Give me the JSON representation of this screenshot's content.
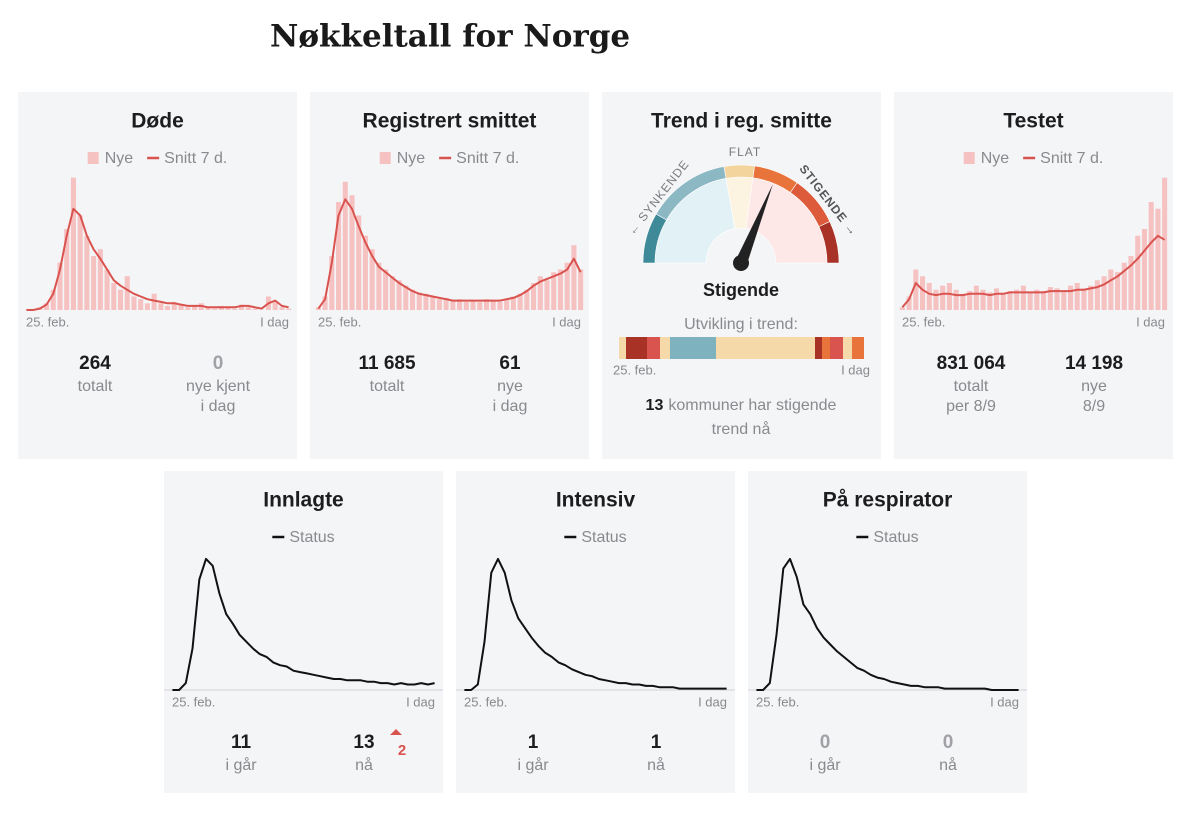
{
  "title": "Nøkkeltall for Norge",
  "cards": [
    {
      "title": "Døde",
      "chart_data": {
        "type": "combo",
        "ylim": [
          0,
          100
        ],
        "categories": [
          "25. feb.",
          null,
          null,
          null,
          null,
          null,
          null,
          null,
          null,
          null,
          null,
          null,
          null,
          null,
          null,
          null,
          null,
          null,
          null,
          null,
          null,
          null,
          null,
          null,
          null,
          null,
          null,
          null,
          null,
          null,
          null,
          null,
          null,
          null,
          null,
          null,
          null,
          null,
          null,
          "I dag"
        ],
        "series": [
          {
            "name": "Nye",
            "type": "bar",
            "color": "#f6c1c1",
            "values": [
              0,
              0,
              2,
              5,
              15,
              35,
              60,
              98,
              70,
              55,
              40,
              45,
              30,
              20,
              15,
              25,
              10,
              8,
              5,
              12,
              5,
              3,
              6,
              4,
              2,
              3,
              5,
              2,
              1,
              3,
              2,
              1,
              4,
              2,
              1,
              0,
              10,
              6,
              2,
              1
            ]
          },
          {
            "name": "Snitt 7 d.",
            "type": "line",
            "color": "#d9534f",
            "values": [
              0,
              0,
              1,
              4,
              12,
              30,
              55,
              75,
              70,
              55,
              45,
              38,
              30,
              22,
              18,
              15,
              12,
              10,
              8,
              7,
              6,
              5,
              5,
              4,
              3,
              3,
              3,
              2,
              2,
              2,
              2,
              2,
              3,
              3,
              2,
              1,
              5,
              7,
              3,
              2
            ]
          }
        ]
      },
      "stats": [
        {
          "value": "264",
          "label": [
            "totalt"
          ]
        },
        {
          "value": "0",
          "label": [
            "nye kjent",
            "i dag"
          ],
          "muted": true
        }
      ]
    },
    {
      "title": "Registrert smittet",
      "chart_data": {
        "type": "combo",
        "ylim": [
          0,
          100
        ],
        "categories": [
          "25. feb.",
          null,
          null,
          null,
          null,
          null,
          null,
          null,
          null,
          null,
          null,
          null,
          null,
          null,
          null,
          null,
          null,
          null,
          null,
          null,
          null,
          null,
          null,
          null,
          null,
          null,
          null,
          null,
          null,
          null,
          null,
          null,
          null,
          null,
          null,
          null,
          null,
          null,
          null,
          "I dag"
        ],
        "series": [
          {
            "name": "Nye",
            "type": "bar",
            "color": "#f6c1c1",
            "values": [
              2,
              10,
              40,
              80,
              95,
              85,
              70,
              55,
              45,
              35,
              30,
              25,
              22,
              18,
              15,
              13,
              12,
              10,
              8,
              9,
              7,
              8,
              6,
              7,
              6,
              8,
              7,
              6,
              8,
              10,
              12,
              15,
              20,
              25,
              22,
              28,
              30,
              35,
              48,
              30
            ]
          },
          {
            "name": "Snitt 7 d.",
            "type": "line",
            "color": "#d9534f",
            "values": [
              1,
              8,
              35,
              70,
              82,
              75,
              62,
              50,
              40,
              32,
              28,
              24,
              20,
              17,
              14,
              12,
              11,
              10,
              9,
              8,
              7,
              7,
              7,
              7,
              7,
              7,
              7,
              7,
              8,
              9,
              11,
              14,
              18,
              21,
              23,
              25,
              27,
              30,
              38,
              28
            ]
          }
        ]
      },
      "stats": [
        {
          "value": "11 685",
          "label": [
            "totalt"
          ]
        },
        {
          "value": "61",
          "label": [
            "nye",
            "i dag"
          ]
        }
      ]
    },
    {
      "title": "Trend i reg. smitte",
      "gauge": {
        "labels": [
          "← SYNKENDE",
          "FLAT",
          "STIGENDE →"
        ],
        "status": "Stigende"
      },
      "trend": {
        "title": "Utvikling i trend:",
        "start": "25. feb.",
        "end": "I dag",
        "segments": [
          {
            "color": "#f5d9a8",
            "days": 7
          },
          {
            "color": "#a93226",
            "days": 21
          },
          {
            "color": "#d9534f",
            "days": 13
          },
          {
            "color": "#f5d9a8",
            "days": 10
          },
          {
            "color": "#7fb2bf",
            "days": 46
          },
          {
            "color": "#f5d9a8",
            "days": 99
          },
          {
            "color": "#a93226",
            "days": 7
          },
          {
            "color": "#e8743b",
            "days": 8
          },
          {
            "color": "#d9534f",
            "days": 13
          },
          {
            "color": "#f5d9a8",
            "days": 9
          },
          {
            "color": "#e8743b",
            "days": 12
          }
        ]
      },
      "summary": {
        "count": "13",
        "text": [
          "kommuner har stigende",
          "trend nå"
        ]
      }
    },
    {
      "title": "Testet",
      "chart_data": {
        "type": "combo",
        "ylim": [
          0,
          100
        ],
        "categories": [
          "25. feb.",
          null,
          null,
          null,
          null,
          null,
          null,
          null,
          null,
          null,
          null,
          null,
          null,
          null,
          null,
          null,
          null,
          null,
          null,
          null,
          null,
          null,
          null,
          null,
          null,
          null,
          null,
          null,
          null,
          null,
          null,
          null,
          null,
          null,
          null,
          null,
          null,
          null,
          null,
          "I dag"
        ],
        "series": [
          {
            "name": "Nye",
            "type": "bar",
            "color": "#f6c1c1",
            "values": [
              2,
              10,
              30,
              25,
              20,
              15,
              18,
              20,
              15,
              12,
              14,
              18,
              15,
              13,
              16,
              12,
              14,
              15,
              18,
              13,
              15,
              14,
              17,
              16,
              14,
              18,
              20,
              16,
              18,
              22,
              25,
              30,
              28,
              35,
              40,
              55,
              60,
              80,
              75,
              98
            ]
          },
          {
            "name": "Snitt 7 d.",
            "type": "line",
            "color": "#d9534f",
            "values": [
              2,
              8,
              20,
              15,
              12,
              11,
              12,
              12,
              11,
              11,
              12,
              12,
              12,
              11,
              12,
              12,
              13,
              13,
              13,
              13,
              13,
              13,
              14,
              14,
              14,
              14,
              15,
              15,
              16,
              17,
              19,
              22,
              25,
              29,
              33,
              38,
              44,
              50,
              55,
              52
            ]
          }
        ]
      },
      "stats": [
        {
          "value": "831 064",
          "label": [
            "totalt",
            "per 8/9"
          ]
        },
        {
          "value": "14 198",
          "label": [
            "nye",
            "8/9"
          ]
        }
      ]
    },
    {
      "title": "Innlagte",
      "chart_data": {
        "type": "line",
        "ylim": [
          0,
          100
        ],
        "categories": [
          "25. feb.",
          null,
          null,
          null,
          null,
          null,
          null,
          null,
          null,
          null,
          null,
          null,
          null,
          null,
          null,
          null,
          null,
          null,
          null,
          null,
          null,
          null,
          null,
          null,
          null,
          null,
          null,
          null,
          null,
          null,
          null,
          null,
          null,
          null,
          null,
          null,
          null,
          null,
          null,
          "I dag"
        ],
        "series": [
          {
            "name": "Status",
            "type": "line",
            "color": "#111111",
            "values": [
              0,
              0,
              5,
              30,
              80,
              95,
              90,
              70,
              55,
              48,
              40,
              35,
              30,
              26,
              24,
              20,
              18,
              17,
              14,
              13,
              12,
              11,
              10,
              9,
              8,
              8,
              7,
              7,
              7,
              6,
              6,
              5,
              5,
              4,
              5,
              4,
              4,
              5,
              4,
              5
            ]
          }
        ]
      },
      "stats": [
        {
          "value": "11",
          "label": [
            "i går"
          ]
        },
        {
          "value": "13",
          "label": [
            "nå"
          ],
          "change": "2"
        }
      ]
    },
    {
      "title": "Intensiv",
      "chart_data": {
        "type": "line",
        "ylim": [
          0,
          100
        ],
        "categories": [
          "25. feb.",
          null,
          null,
          null,
          null,
          null,
          null,
          null,
          null,
          null,
          null,
          null,
          null,
          null,
          null,
          null,
          null,
          null,
          null,
          null,
          null,
          null,
          null,
          null,
          null,
          null,
          null,
          null,
          null,
          null,
          null,
          null,
          null,
          null,
          null,
          null,
          null,
          null,
          null,
          "I dag"
        ],
        "series": [
          {
            "name": "Status",
            "type": "line",
            "color": "#111111",
            "values": [
              0,
              0,
              4,
              35,
              85,
              95,
              85,
              65,
              52,
              45,
              38,
              32,
              27,
              24,
              20,
              18,
              15,
              13,
              11,
              10,
              8,
              7,
              6,
              5,
              5,
              4,
              4,
              3,
              3,
              2,
              2,
              2,
              1,
              1,
              1,
              1,
              1,
              1,
              1,
              1
            ]
          }
        ]
      },
      "stats": [
        {
          "value": "1",
          "label": [
            "i går"
          ]
        },
        {
          "value": "1",
          "label": [
            "nå"
          ]
        }
      ]
    },
    {
      "title": "På respirator",
      "chart_data": {
        "type": "line",
        "ylim": [
          0,
          100
        ],
        "categories": [
          "25. feb.",
          null,
          null,
          null,
          null,
          null,
          null,
          null,
          null,
          null,
          null,
          null,
          null,
          null,
          null,
          null,
          null,
          null,
          null,
          null,
          null,
          null,
          null,
          null,
          null,
          null,
          null,
          null,
          null,
          null,
          null,
          null,
          null,
          null,
          null,
          null,
          null,
          null,
          null,
          "I dag"
        ],
        "series": [
          {
            "name": "Status",
            "type": "line",
            "color": "#111111",
            "values": [
              0,
              0,
              5,
              40,
              88,
              95,
              82,
              62,
              55,
              45,
              38,
              33,
              28,
              24,
              20,
              16,
              14,
              11,
              9,
              8,
              6,
              5,
              4,
              3,
              3,
              2,
              2,
              2,
              1,
              1,
              1,
              1,
              1,
              1,
              1,
              0,
              0,
              0,
              0,
              0
            ]
          }
        ]
      },
      "stats": [
        {
          "value": "0",
          "label": [
            "i går"
          ],
          "muted": true
        },
        {
          "value": "0",
          "label": [
            "nå"
          ],
          "muted": true
        }
      ]
    }
  ]
}
